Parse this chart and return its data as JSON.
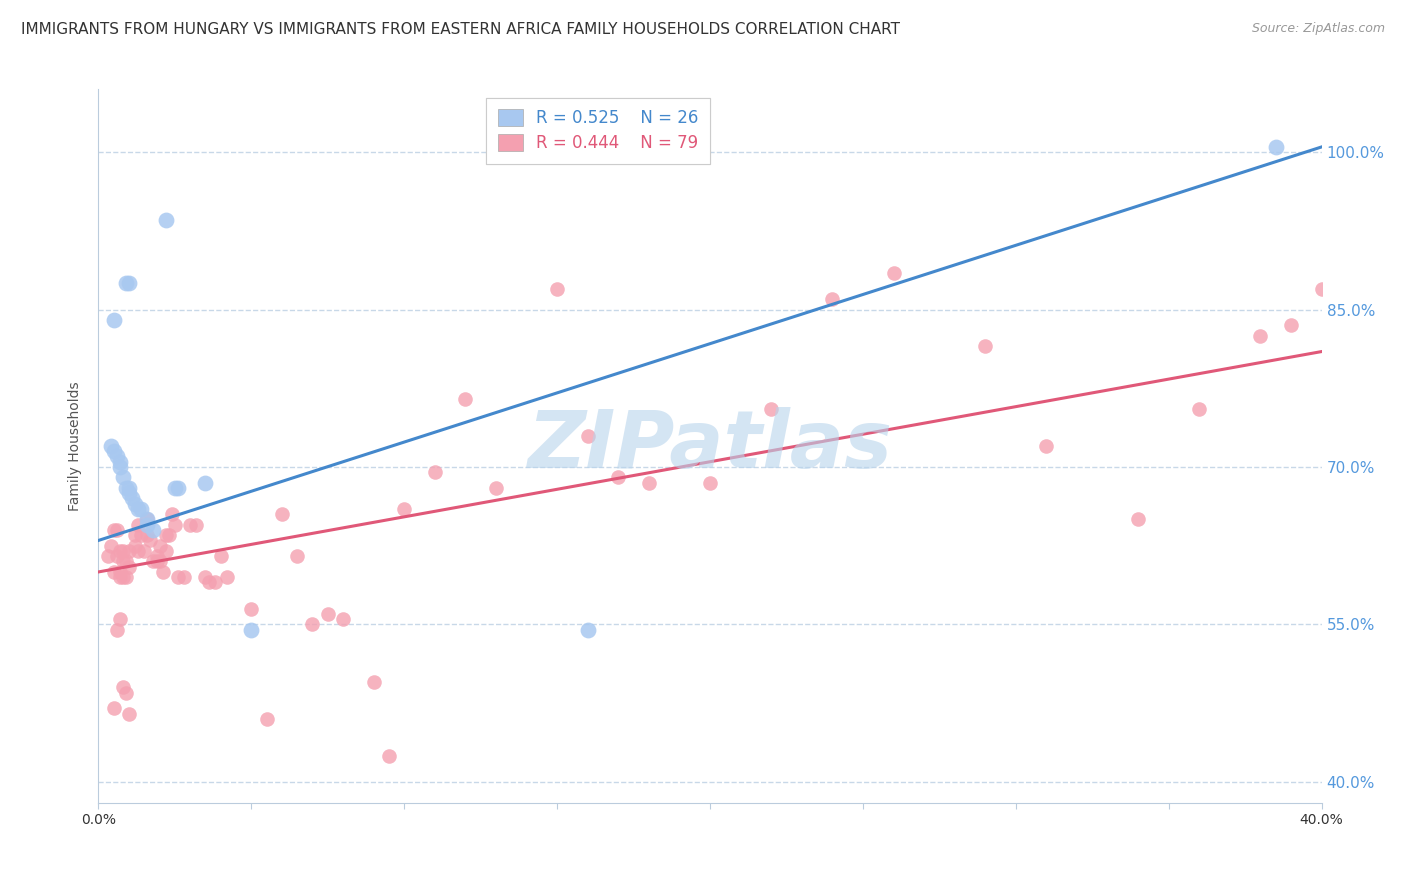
{
  "title": "IMMIGRANTS FROM HUNGARY VS IMMIGRANTS FROM EASTERN AFRICA FAMILY HOUSEHOLDS CORRELATION CHART",
  "source": "Source: ZipAtlas.com",
  "ylabel": "Family Households",
  "xlim": [
    0.0,
    0.4
  ],
  "ylim": [
    0.38,
    1.06
  ],
  "yticks_right": [
    0.4,
    0.55,
    0.7,
    0.85,
    1.0
  ],
  "yticklabels_right": [
    "40.0%",
    "55.0%",
    "70.0%",
    "85.0%",
    "100.0%"
  ],
  "blue_color": "#a8c8f0",
  "pink_color": "#f4a0b0",
  "blue_line_color": "#4488cc",
  "pink_line_color": "#e05878",
  "legend_blue_r": "R = 0.525",
  "legend_blue_n": "N = 26",
  "legend_pink_r": "R = 0.444",
  "legend_pink_n": "N = 79",
  "watermark": "ZIPatlas",
  "watermark_color": "#b8d4ec",
  "grid_color": "#c8d8e8",
  "background_color": "#ffffff",
  "title_fontsize": 11,
  "source_fontsize": 9,
  "axis_label_fontsize": 10,
  "tick_fontsize": 10,
  "legend_fontsize": 12,
  "blue_scatter_x": [
    0.022,
    0.005,
    0.01,
    0.009,
    0.004,
    0.005,
    0.006,
    0.007,
    0.007,
    0.008,
    0.009,
    0.01,
    0.01,
    0.011,
    0.012,
    0.013,
    0.014,
    0.016,
    0.016,
    0.018,
    0.025,
    0.026,
    0.035,
    0.05,
    0.16,
    0.385
  ],
  "blue_scatter_y": [
    0.935,
    0.84,
    0.875,
    0.875,
    0.72,
    0.715,
    0.71,
    0.705,
    0.7,
    0.69,
    0.68,
    0.68,
    0.675,
    0.67,
    0.665,
    0.66,
    0.66,
    0.65,
    0.645,
    0.64,
    0.68,
    0.68,
    0.685,
    0.545,
    0.545,
    1.005
  ],
  "pink_scatter_x": [
    0.003,
    0.004,
    0.005,
    0.005,
    0.006,
    0.006,
    0.007,
    0.007,
    0.007,
    0.008,
    0.008,
    0.008,
    0.009,
    0.009,
    0.01,
    0.01,
    0.012,
    0.012,
    0.013,
    0.013,
    0.014,
    0.015,
    0.016,
    0.016,
    0.017,
    0.018,
    0.019,
    0.019,
    0.02,
    0.02,
    0.021,
    0.022,
    0.022,
    0.023,
    0.024,
    0.025,
    0.026,
    0.028,
    0.03,
    0.032,
    0.035,
    0.036,
    0.038,
    0.04,
    0.042,
    0.05,
    0.055,
    0.06,
    0.065,
    0.07,
    0.075,
    0.08,
    0.09,
    0.095,
    0.1,
    0.11,
    0.12,
    0.13,
    0.15,
    0.16,
    0.17,
    0.18,
    0.2,
    0.22,
    0.24,
    0.26,
    0.29,
    0.31,
    0.34,
    0.36,
    0.38,
    0.39,
    0.4,
    0.005,
    0.006,
    0.007,
    0.008,
    0.009,
    0.01
  ],
  "pink_scatter_y": [
    0.615,
    0.625,
    0.64,
    0.6,
    0.64,
    0.615,
    0.6,
    0.595,
    0.62,
    0.62,
    0.61,
    0.595,
    0.595,
    0.61,
    0.62,
    0.605,
    0.635,
    0.625,
    0.645,
    0.62,
    0.635,
    0.62,
    0.65,
    0.635,
    0.63,
    0.61,
    0.61,
    0.615,
    0.625,
    0.61,
    0.6,
    0.62,
    0.635,
    0.635,
    0.655,
    0.645,
    0.595,
    0.595,
    0.645,
    0.645,
    0.595,
    0.59,
    0.59,
    0.615,
    0.595,
    0.565,
    0.46,
    0.655,
    0.615,
    0.55,
    0.56,
    0.555,
    0.495,
    0.425,
    0.66,
    0.695,
    0.765,
    0.68,
    0.87,
    0.73,
    0.69,
    0.685,
    0.685,
    0.755,
    0.86,
    0.885,
    0.815,
    0.72,
    0.65,
    0.755,
    0.825,
    0.835,
    0.87,
    0.47,
    0.545,
    0.555,
    0.49,
    0.485,
    0.465
  ],
  "blue_trendline_x": [
    0.0,
    0.4
  ],
  "blue_trendline_y": [
    0.63,
    1.005
  ],
  "pink_trendline_x": [
    0.0,
    0.4
  ],
  "pink_trendline_y": [
    0.6,
    0.81
  ]
}
